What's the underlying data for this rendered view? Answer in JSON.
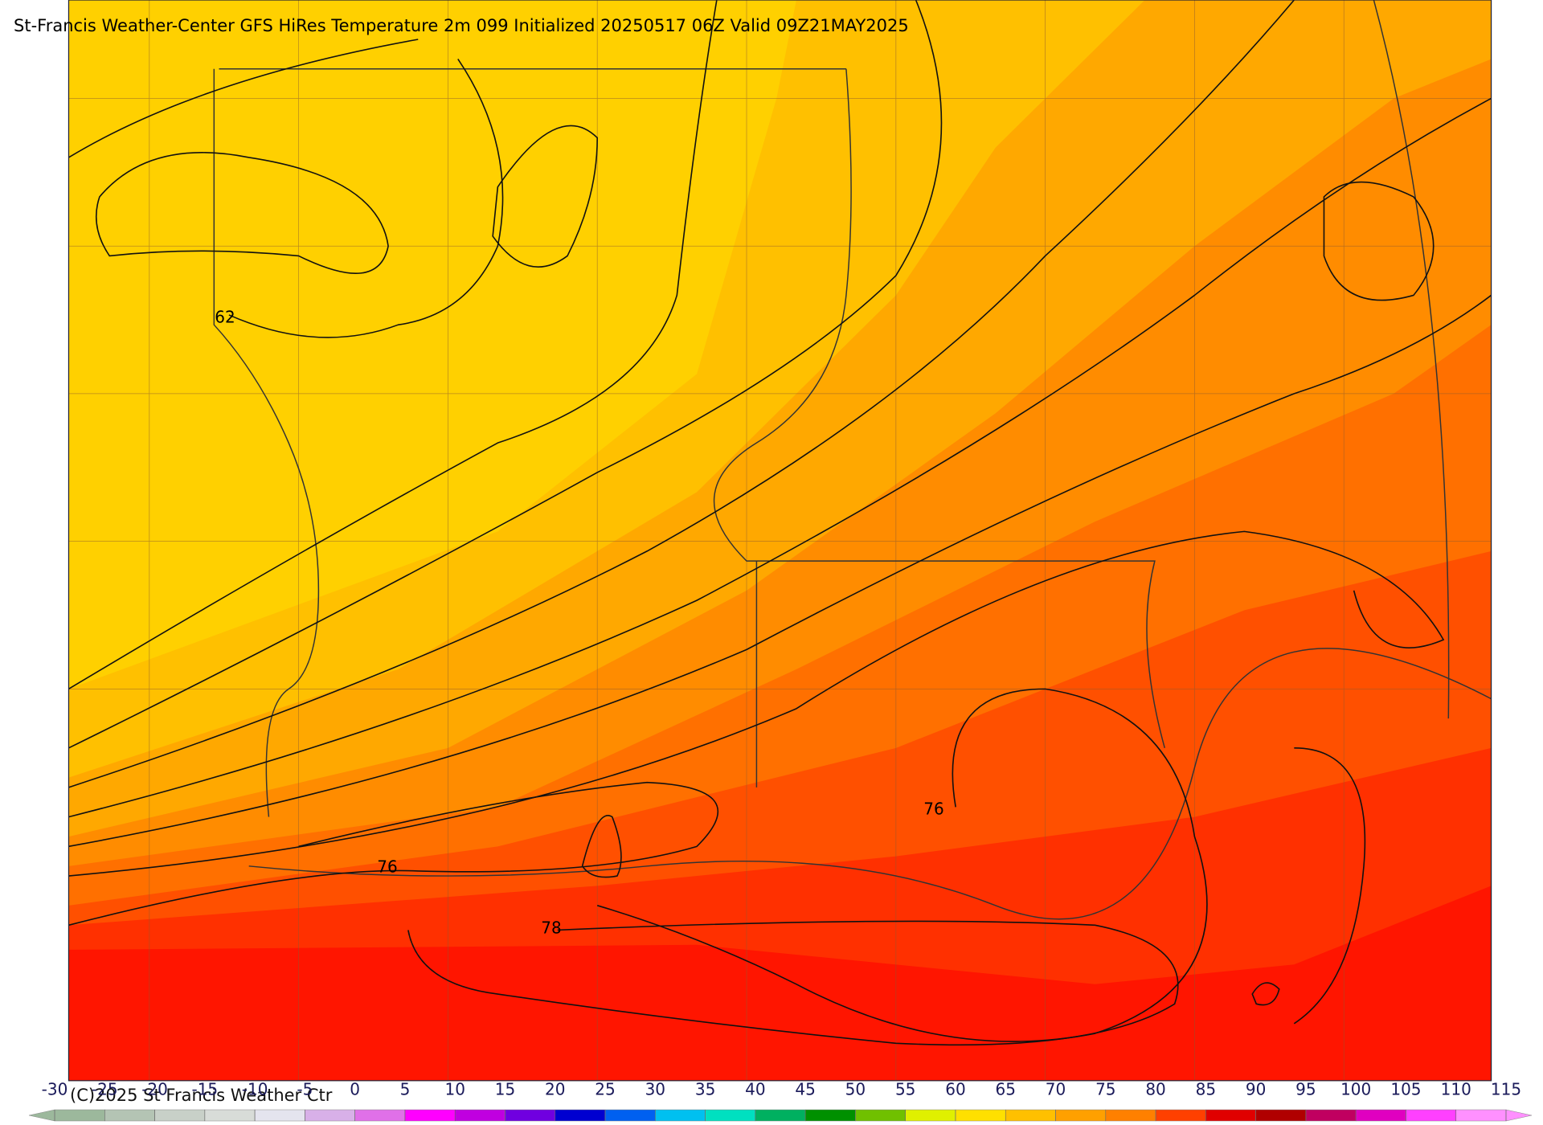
{
  "header": {
    "title": "St-Francis Weather-Center GFS HiRes Temperature 2m  099 Initialized 20250517 06Z Valid 09Z21MAY2025"
  },
  "contour_labels": [
    62,
    76,
    76,
    78
  ],
  "colorbar": {
    "ticks": [
      -30,
      -25,
      -20,
      -15,
      -10,
      -5,
      0,
      5,
      10,
      15,
      20,
      25,
      30,
      35,
      40,
      45,
      50,
      55,
      60,
      65,
      70,
      75,
      80,
      85,
      90,
      95,
      100,
      105,
      110,
      115
    ],
    "colors": [
      "#9cb89c",
      "#b4c4b4",
      "#c8d0c8",
      "#d8dcd8",
      "#e4e4ee",
      "#d8b0e8",
      "#e070e8",
      "#ff00ff",
      "#c000e0",
      "#7000e0",
      "#0000d0",
      "#0060f0",
      "#00c0f0",
      "#00e0c0",
      "#00b060",
      "#009000",
      "#70c000",
      "#e0f000",
      "#ffe000",
      "#ffc000",
      "#ffa000",
      "#ff8000",
      "#ff4000",
      "#e00000",
      "#b00000",
      "#c00060",
      "#e000c0",
      "#ff40ff",
      "#ff90ff"
    ]
  },
  "footer": {
    "copyright": "(C)2025 St Francis Weather Ctr"
  }
}
